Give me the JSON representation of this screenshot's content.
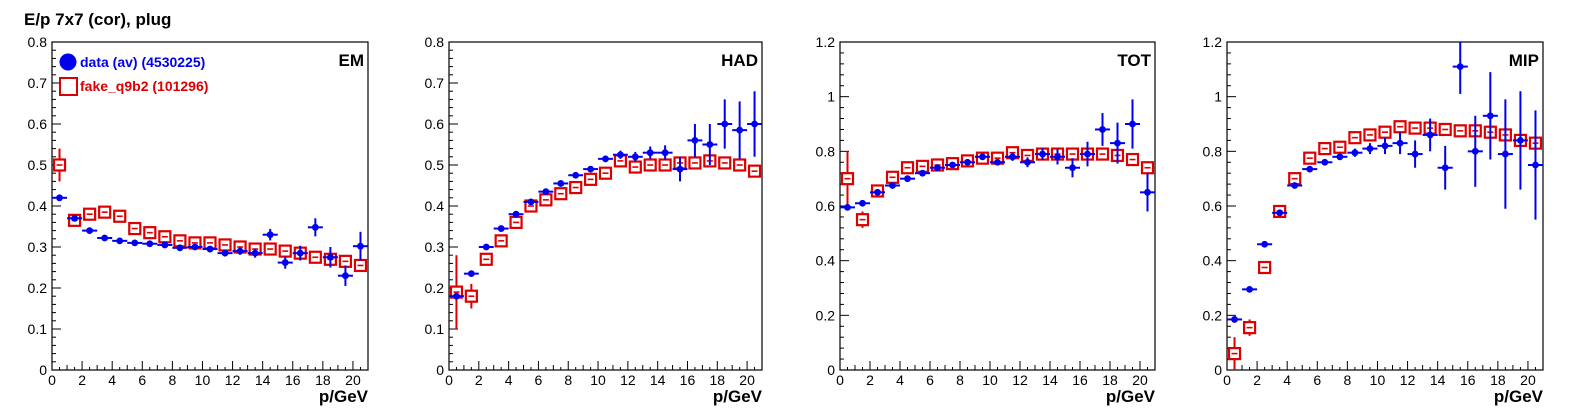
{
  "figure_title": "E/p 7x7 (cor), plug",
  "colors": {
    "data": "#0000ee",
    "fake": "#dd0000"
  },
  "chart_data": [
    {
      "type": "scatter",
      "panel_label": "EM",
      "xlabel": "p/GeV",
      "xlim": [
        0,
        21
      ],
      "ylim": [
        0,
        0.8
      ],
      "x_ticks": [
        0,
        2,
        4,
        6,
        8,
        10,
        12,
        14,
        16,
        18,
        20
      ],
      "y_ticks": [
        "0",
        "0.1",
        "0.2",
        "0.3",
        "0.4",
        "0.5",
        "0.6",
        "0.7",
        "0.8"
      ],
      "legend": [
        {
          "label": "data (av) (4530225)",
          "marker": "filled-circle",
          "color": "#0000ee"
        },
        {
          "label": "fake_q9b2 (101296)",
          "marker": "open-square",
          "color": "#dd0000"
        }
      ],
      "series": [
        {
          "name": "data (av) (4530225)",
          "marker": "filled-circle",
          "x": [
            0.5,
            1.5,
            2.5,
            3.5,
            4.5,
            5.5,
            6.5,
            7.5,
            8.5,
            9.5,
            10.5,
            11.5,
            12.5,
            13.5,
            14.5,
            15.5,
            16.5,
            17.5,
            18.5,
            19.5,
            20.5
          ],
          "y": [
            0.42,
            0.37,
            0.34,
            0.322,
            0.315,
            0.31,
            0.308,
            0.305,
            0.298,
            0.3,
            0.295,
            0.285,
            0.29,
            0.285,
            0.33,
            0.262,
            0.285,
            0.348,
            0.275,
            0.23,
            0.302
          ],
          "err": [
            0.005,
            0.005,
            0.004,
            0.004,
            0.004,
            0.004,
            0.005,
            0.005,
            0.006,
            0.006,
            0.007,
            0.008,
            0.009,
            0.011,
            0.014,
            0.015,
            0.018,
            0.022,
            0.025,
            0.025,
            0.035
          ]
        },
        {
          "name": "fake_q9b2 (101296)",
          "marker": "open-square",
          "x": [
            0.5,
            1.5,
            2.5,
            3.5,
            4.5,
            5.5,
            6.5,
            7.5,
            8.5,
            9.5,
            10.5,
            11.5,
            12.5,
            13.5,
            14.5,
            15.5,
            16.5,
            17.5,
            18.5,
            19.5,
            20.5
          ],
          "y": [
            0.5,
            0.365,
            0.38,
            0.385,
            0.375,
            0.345,
            0.335,
            0.325,
            0.315,
            0.31,
            0.31,
            0.305,
            0.3,
            0.295,
            0.295,
            0.29,
            0.285,
            0.275,
            0.27,
            0.265,
            0.255
          ],
          "err": [
            0.04,
            0.015,
            0.01,
            0.01,
            0.008,
            0.008,
            0.008,
            0.008,
            0.008,
            0.008,
            0.008,
            0.008,
            0.008,
            0.008,
            0.008,
            0.008,
            0.008,
            0.008,
            0.008,
            0.008,
            0.008
          ]
        }
      ]
    },
    {
      "type": "scatter",
      "panel_label": "HAD",
      "xlabel": "p/GeV",
      "xlim": [
        0,
        21
      ],
      "ylim": [
        0,
        0.8
      ],
      "x_ticks": [
        0,
        2,
        4,
        6,
        8,
        10,
        12,
        14,
        16,
        18,
        20
      ],
      "y_ticks": [
        "0",
        "0.1",
        "0.2",
        "0.3",
        "0.4",
        "0.5",
        "0.6",
        "0.7",
        "0.8"
      ],
      "series": [
        {
          "name": "data (av) (4530225)",
          "marker": "filled-circle",
          "x": [
            0.5,
            1.5,
            2.5,
            3.5,
            4.5,
            5.5,
            6.5,
            7.5,
            8.5,
            9.5,
            10.5,
            11.5,
            12.5,
            13.5,
            14.5,
            15.5,
            16.5,
            17.5,
            18.5,
            19.5,
            20.5
          ],
          "y": [
            0.18,
            0.235,
            0.3,
            0.345,
            0.38,
            0.41,
            0.435,
            0.455,
            0.475,
            0.49,
            0.515,
            0.525,
            0.52,
            0.53,
            0.53,
            0.49,
            0.56,
            0.55,
            0.6,
            0.585,
            0.6
          ],
          "err": [
            0.005,
            0.005,
            0.004,
            0.004,
            0.004,
            0.004,
            0.005,
            0.005,
            0.006,
            0.007,
            0.008,
            0.01,
            0.012,
            0.015,
            0.018,
            0.03,
            0.04,
            0.05,
            0.06,
            0.07,
            0.08
          ]
        },
        {
          "name": "fake_q9b2 (101296)",
          "marker": "open-square",
          "x": [
            0.5,
            1.5,
            2.5,
            3.5,
            4.5,
            5.5,
            6.5,
            7.5,
            8.5,
            9.5,
            10.5,
            11.5,
            12.5,
            13.5,
            14.5,
            15.5,
            16.5,
            17.5,
            18.5,
            19.5,
            20.5
          ],
          "y": [
            0.19,
            0.18,
            0.27,
            0.315,
            0.36,
            0.4,
            0.415,
            0.43,
            0.445,
            0.465,
            0.48,
            0.51,
            0.495,
            0.5,
            0.5,
            0.505,
            0.505,
            0.51,
            0.505,
            0.5,
            0.485
          ],
          "err": [
            0.09,
            0.03,
            0.015,
            0.01,
            0.01,
            0.008,
            0.008,
            0.008,
            0.008,
            0.008,
            0.008,
            0.008,
            0.008,
            0.008,
            0.008,
            0.008,
            0.008,
            0.008,
            0.008,
            0.008,
            0.008
          ]
        }
      ]
    },
    {
      "type": "scatter",
      "panel_label": "TOT",
      "xlabel": "p/GeV",
      "xlim": [
        0,
        21
      ],
      "ylim": [
        0,
        1.2
      ],
      "x_ticks": [
        0,
        2,
        4,
        6,
        8,
        10,
        12,
        14,
        16,
        18,
        20
      ],
      "y_ticks": [
        "0",
        "0.2",
        "0.4",
        "0.6",
        "0.8",
        "1",
        "1.2"
      ],
      "series": [
        {
          "name": "data (av) (4530225)",
          "marker": "filled-circle",
          "x": [
            0.5,
            1.5,
            2.5,
            3.5,
            4.5,
            5.5,
            6.5,
            7.5,
            8.5,
            9.5,
            10.5,
            11.5,
            12.5,
            13.5,
            14.5,
            15.5,
            16.5,
            17.5,
            18.5,
            19.5,
            20.5
          ],
          "y": [
            0.595,
            0.61,
            0.65,
            0.675,
            0.7,
            0.72,
            0.74,
            0.75,
            0.76,
            0.78,
            0.76,
            0.78,
            0.76,
            0.79,
            0.78,
            0.74,
            0.79,
            0.88,
            0.83,
            0.9,
            0.65
          ],
          "err": [
            0.005,
            0.005,
            0.005,
            0.005,
            0.005,
            0.005,
            0.006,
            0.007,
            0.008,
            0.01,
            0.012,
            0.015,
            0.018,
            0.022,
            0.028,
            0.035,
            0.045,
            0.06,
            0.075,
            0.09,
            0.07
          ]
        },
        {
          "name": "fake_q9b2 (101296)",
          "marker": "open-square",
          "x": [
            0.5,
            1.5,
            2.5,
            3.5,
            4.5,
            5.5,
            6.5,
            7.5,
            8.5,
            9.5,
            10.5,
            11.5,
            12.5,
            13.5,
            14.5,
            15.5,
            16.5,
            17.5,
            18.5,
            19.5,
            20.5
          ],
          "y": [
            0.7,
            0.55,
            0.655,
            0.705,
            0.74,
            0.745,
            0.75,
            0.755,
            0.765,
            0.775,
            0.775,
            0.795,
            0.785,
            0.79,
            0.79,
            0.79,
            0.79,
            0.79,
            0.785,
            0.77,
            0.74
          ],
          "err": [
            0.1,
            0.03,
            0.015,
            0.012,
            0.01,
            0.01,
            0.01,
            0.01,
            0.01,
            0.01,
            0.01,
            0.01,
            0.01,
            0.01,
            0.01,
            0.01,
            0.01,
            0.01,
            0.01,
            0.01,
            0.01
          ]
        }
      ]
    },
    {
      "type": "scatter",
      "panel_label": "MIP",
      "xlabel": "p/GeV",
      "xlim": [
        0,
        21
      ],
      "ylim": [
        0,
        1.2
      ],
      "x_ticks": [
        0,
        2,
        4,
        6,
        8,
        10,
        12,
        14,
        16,
        18,
        20
      ],
      "y_ticks": [
        "0",
        "0.2",
        "0.4",
        "0.6",
        "0.8",
        "1",
        "1.2"
      ],
      "series": [
        {
          "name": "data (av) (4530225)",
          "marker": "filled-circle",
          "x": [
            0.5,
            1.5,
            2.5,
            3.5,
            4.5,
            5.5,
            6.5,
            7.5,
            8.5,
            9.5,
            10.5,
            11.5,
            12.5,
            13.5,
            14.5,
            15.5,
            16.5,
            17.5,
            18.5,
            19.5,
            20.5
          ],
          "y": [
            0.185,
            0.295,
            0.46,
            0.575,
            0.675,
            0.735,
            0.76,
            0.78,
            0.795,
            0.81,
            0.82,
            0.83,
            0.79,
            0.86,
            0.74,
            1.11,
            0.8,
            0.93,
            0.79,
            0.84,
            0.75
          ],
          "err": [
            0.005,
            0.005,
            0.005,
            0.005,
            0.005,
            0.006,
            0.007,
            0.01,
            0.015,
            0.02,
            0.03,
            0.04,
            0.05,
            0.06,
            0.08,
            0.1,
            0.13,
            0.16,
            0.2,
            0.18,
            0.2
          ]
        },
        {
          "name": "fake_q9b2 (101296)",
          "marker": "open-square",
          "x": [
            0.5,
            1.5,
            2.5,
            3.5,
            4.5,
            5.5,
            6.5,
            7.5,
            8.5,
            9.5,
            10.5,
            11.5,
            12.5,
            13.5,
            14.5,
            15.5,
            16.5,
            17.5,
            18.5,
            19.5,
            20.5
          ],
          "y": [
            0.06,
            0.155,
            0.375,
            0.58,
            0.7,
            0.775,
            0.81,
            0.815,
            0.85,
            0.86,
            0.87,
            0.89,
            0.885,
            0.885,
            0.88,
            0.875,
            0.875,
            0.87,
            0.86,
            0.84,
            0.83
          ],
          "err": [
            0.06,
            0.03,
            0.02,
            0.015,
            0.012,
            0.01,
            0.01,
            0.01,
            0.01,
            0.01,
            0.01,
            0.01,
            0.01,
            0.01,
            0.01,
            0.01,
            0.01,
            0.01,
            0.01,
            0.01,
            0.01
          ]
        }
      ]
    }
  ]
}
